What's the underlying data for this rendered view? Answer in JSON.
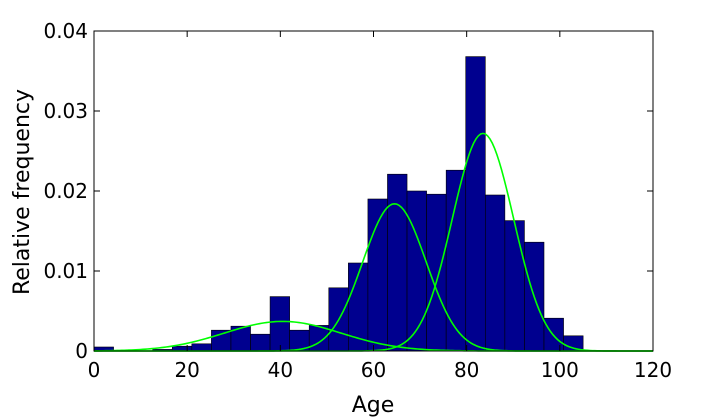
{
  "chart_data": {
    "type": "bar",
    "title": "",
    "xlabel": "Age",
    "ylabel": "Relative frequency",
    "xlim": [
      0,
      120
    ],
    "ylim": [
      0,
      0.04
    ],
    "xticks": [
      0,
      20,
      40,
      60,
      80,
      100,
      120
    ],
    "xtick_labels": [
      "0",
      "20",
      "40",
      "60",
      "80",
      "100",
      "120"
    ],
    "yticks": [
      0,
      0.01,
      0.02,
      0.03,
      0.04
    ],
    "ytick_labels": [
      "0",
      "0.01",
      "0.02",
      "0.03",
      "0.04"
    ],
    "grid": false,
    "legend": "none",
    "bin_width": 4.2,
    "bins": [
      {
        "x0": 0.0,
        "value": 0.0005
      },
      {
        "x0": 4.2,
        "value": 0.0
      },
      {
        "x0": 8.4,
        "value": 0.0
      },
      {
        "x0": 12.6,
        "value": 0.0002
      },
      {
        "x0": 16.8,
        "value": 0.0006
      },
      {
        "x0": 21.0,
        "value": 0.0009
      },
      {
        "x0": 25.2,
        "value": 0.0026
      },
      {
        "x0": 29.4,
        "value": 0.0031
      },
      {
        "x0": 33.6,
        "value": 0.0021
      },
      {
        "x0": 37.8,
        "value": 0.0068
      },
      {
        "x0": 42.0,
        "value": 0.0026
      },
      {
        "x0": 46.2,
        "value": 0.0032
      },
      {
        "x0": 50.4,
        "value": 0.0079
      },
      {
        "x0": 54.6,
        "value": 0.011
      },
      {
        "x0": 58.8,
        "value": 0.019
      },
      {
        "x0": 63.0,
        "value": 0.0221
      },
      {
        "x0": 67.2,
        "value": 0.02
      },
      {
        "x0": 71.4,
        "value": 0.0196
      },
      {
        "x0": 75.6,
        "value": 0.0226
      },
      {
        "x0": 79.8,
        "value": 0.0368
      },
      {
        "x0": 84.0,
        "value": 0.0195
      },
      {
        "x0": 88.2,
        "value": 0.0163
      },
      {
        "x0": 92.4,
        "value": 0.0136
      },
      {
        "x0": 96.6,
        "value": 0.0041
      },
      {
        "x0": 100.8,
        "value": 0.0019
      }
    ],
    "curves": [
      {
        "mean": 40.5,
        "sd": 12.5,
        "peak": 0.0037
      },
      {
        "mean": 64.5,
        "sd": 6.8,
        "peak": 0.0184
      },
      {
        "mean": 83.5,
        "sd": 6.6,
        "peak": 0.0272
      }
    ],
    "colors": {
      "bar_fill": "#00008F",
      "bar_edge": "#000000",
      "curve": "#00FF00",
      "axes": "#000000",
      "background": "#FFFFFF"
    }
  }
}
